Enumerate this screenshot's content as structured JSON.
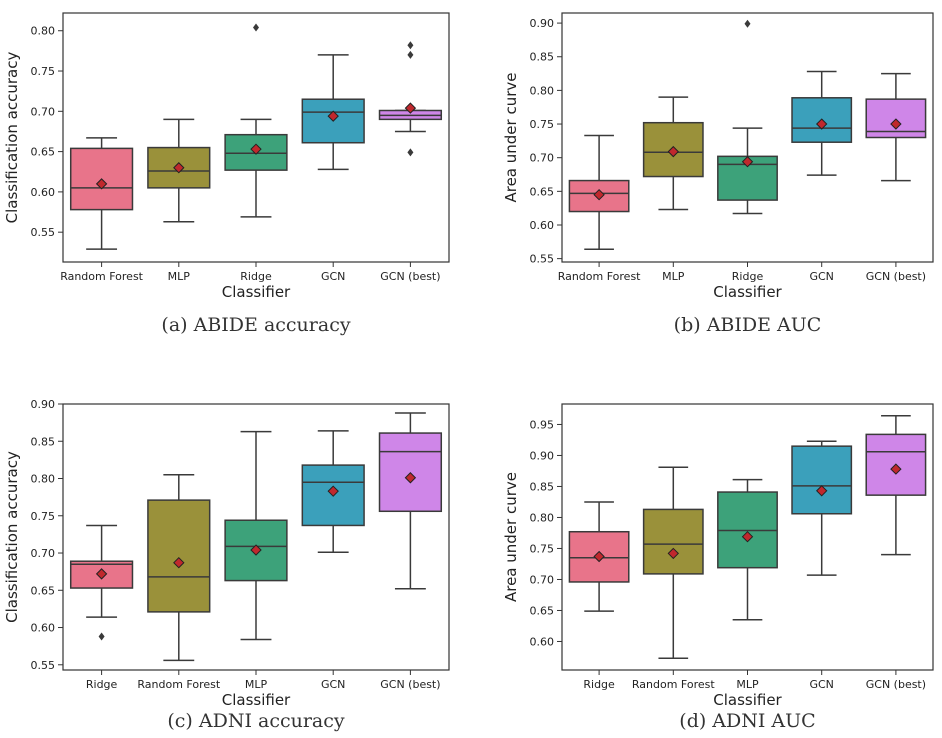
{
  "chart_data": [
    {
      "type": "box",
      "caption": "(a) ABIDE accuracy",
      "xlabel": "Classifier",
      "ylabel": "Classification accuracy",
      "ylim": [
        0.513,
        0.822
      ],
      "yticks": [
        "0.55",
        "0.60",
        "0.65",
        "0.70",
        "0.75",
        "0.80"
      ],
      "categories": [
        "Random Forest",
        "MLP",
        "Ridge",
        "GCN",
        "GCN (best)"
      ],
      "colors": [
        "#e8748a",
        "#9a913a",
        "#3da27a",
        "#3ba0bb",
        "#cf86e8"
      ],
      "boxes": [
        {
          "whislo": 0.529,
          "q1": 0.578,
          "med": 0.605,
          "q3": 0.654,
          "whishi": 0.667,
          "mean": 0.61,
          "fliers": []
        },
        {
          "whislo": 0.563,
          "q1": 0.605,
          "med": 0.626,
          "q3": 0.655,
          "whishi": 0.69,
          "mean": 0.63,
          "fliers": []
        },
        {
          "whislo": 0.569,
          "q1": 0.627,
          "med": 0.648,
          "q3": 0.671,
          "whishi": 0.69,
          "mean": 0.653,
          "fliers": [
            0.804
          ]
        },
        {
          "whislo": 0.628,
          "q1": 0.661,
          "med": 0.699,
          "q3": 0.715,
          "whishi": 0.77,
          "mean": 0.694,
          "fliers": []
        },
        {
          "whislo": 0.675,
          "q1": 0.69,
          "med": 0.695,
          "q3": 0.701,
          "whishi": 0.701,
          "mean": 0.704,
          "fliers": [
            0.782,
            0.77,
            0.649
          ]
        }
      ]
    },
    {
      "type": "box",
      "caption": "(b) ABIDE AUC",
      "xlabel": "Classifier",
      "ylabel": "Area under curve",
      "ylim": [
        0.545,
        0.915
      ],
      "yticks": [
        "0.55",
        "0.60",
        "0.65",
        "0.70",
        "0.75",
        "0.80",
        "0.85",
        "0.90"
      ],
      "categories": [
        "Random Forest",
        "MLP",
        "Ridge",
        "GCN",
        "GCN (best)"
      ],
      "colors": [
        "#e8748a",
        "#9a913a",
        "#3da27a",
        "#3ba0bb",
        "#cf86e8"
      ],
      "boxes": [
        {
          "whislo": 0.564,
          "q1": 0.62,
          "med": 0.647,
          "q3": 0.666,
          "whishi": 0.733,
          "mean": 0.645,
          "fliers": []
        },
        {
          "whislo": 0.623,
          "q1": 0.672,
          "med": 0.708,
          "q3": 0.752,
          "whishi": 0.79,
          "mean": 0.709,
          "fliers": []
        },
        {
          "whislo": 0.617,
          "q1": 0.637,
          "med": 0.69,
          "q3": 0.702,
          "whishi": 0.744,
          "mean": 0.694,
          "fliers": [
            0.899
          ]
        },
        {
          "whislo": 0.674,
          "q1": 0.723,
          "med": 0.744,
          "q3": 0.789,
          "whishi": 0.828,
          "mean": 0.75,
          "fliers": []
        },
        {
          "whislo": 0.666,
          "q1": 0.73,
          "med": 0.739,
          "q3": 0.787,
          "whishi": 0.825,
          "mean": 0.75,
          "fliers": []
        }
      ]
    },
    {
      "type": "box",
      "caption": "(c) ADNI accuracy",
      "xlabel": "Classifier",
      "ylabel": "Classification accuracy",
      "ylim": [
        0.543,
        0.9
      ],
      "yticks": [
        "0.55",
        "0.60",
        "0.65",
        "0.70",
        "0.75",
        "0.80",
        "0.85",
        "0.90"
      ],
      "categories": [
        "Ridge",
        "Random Forest",
        "MLP",
        "GCN",
        "GCN (best)"
      ],
      "colors": [
        "#e8748a",
        "#9a913a",
        "#3da27a",
        "#3ba0bb",
        "#cf86e8"
      ],
      "boxes": [
        {
          "whislo": 0.614,
          "q1": 0.653,
          "med": 0.685,
          "q3": 0.689,
          "whishi": 0.737,
          "mean": 0.672,
          "fliers": [
            0.588
          ]
        },
        {
          "whislo": 0.556,
          "q1": 0.621,
          "med": 0.668,
          "q3": 0.771,
          "whishi": 0.805,
          "mean": 0.687,
          "fliers": []
        },
        {
          "whislo": 0.584,
          "q1": 0.663,
          "med": 0.709,
          "q3": 0.744,
          "whishi": 0.863,
          "mean": 0.704,
          "fliers": []
        },
        {
          "whislo": 0.701,
          "q1": 0.737,
          "med": 0.795,
          "q3": 0.818,
          "whishi": 0.864,
          "mean": 0.783,
          "fliers": []
        },
        {
          "whislo": 0.652,
          "q1": 0.756,
          "med": 0.836,
          "q3": 0.861,
          "whishi": 0.888,
          "mean": 0.801,
          "fliers": []
        }
      ]
    },
    {
      "type": "box",
      "caption": "(d) ADNI AUC",
      "xlabel": "Classifier",
      "ylabel": "Area under curve",
      "ylim": [
        0.554,
        0.983
      ],
      "yticks": [
        "0.60",
        "0.65",
        "0.70",
        "0.75",
        "0.80",
        "0.85",
        "0.90",
        "0.95"
      ],
      "categories": [
        "Ridge",
        "Random Forest",
        "MLP",
        "GCN",
        "GCN (best)"
      ],
      "colors": [
        "#e8748a",
        "#9a913a",
        "#3da27a",
        "#3ba0bb",
        "#cf86e8"
      ],
      "boxes": [
        {
          "whislo": 0.649,
          "q1": 0.696,
          "med": 0.735,
          "q3": 0.777,
          "whishi": 0.825,
          "mean": 0.737,
          "fliers": []
        },
        {
          "whislo": 0.573,
          "q1": 0.709,
          "med": 0.757,
          "q3": 0.813,
          "whishi": 0.881,
          "mean": 0.742,
          "fliers": []
        },
        {
          "whislo": 0.635,
          "q1": 0.719,
          "med": 0.779,
          "q3": 0.841,
          "whishi": 0.861,
          "mean": 0.769,
          "fliers": []
        },
        {
          "whislo": 0.707,
          "q1": 0.806,
          "med": 0.851,
          "q3": 0.915,
          "whishi": 0.923,
          "mean": 0.843,
          "fliers": []
        },
        {
          "whislo": 0.74,
          "q1": 0.836,
          "med": 0.906,
          "q3": 0.934,
          "whishi": 0.964,
          "mean": 0.878,
          "fliers": []
        }
      ]
    }
  ]
}
